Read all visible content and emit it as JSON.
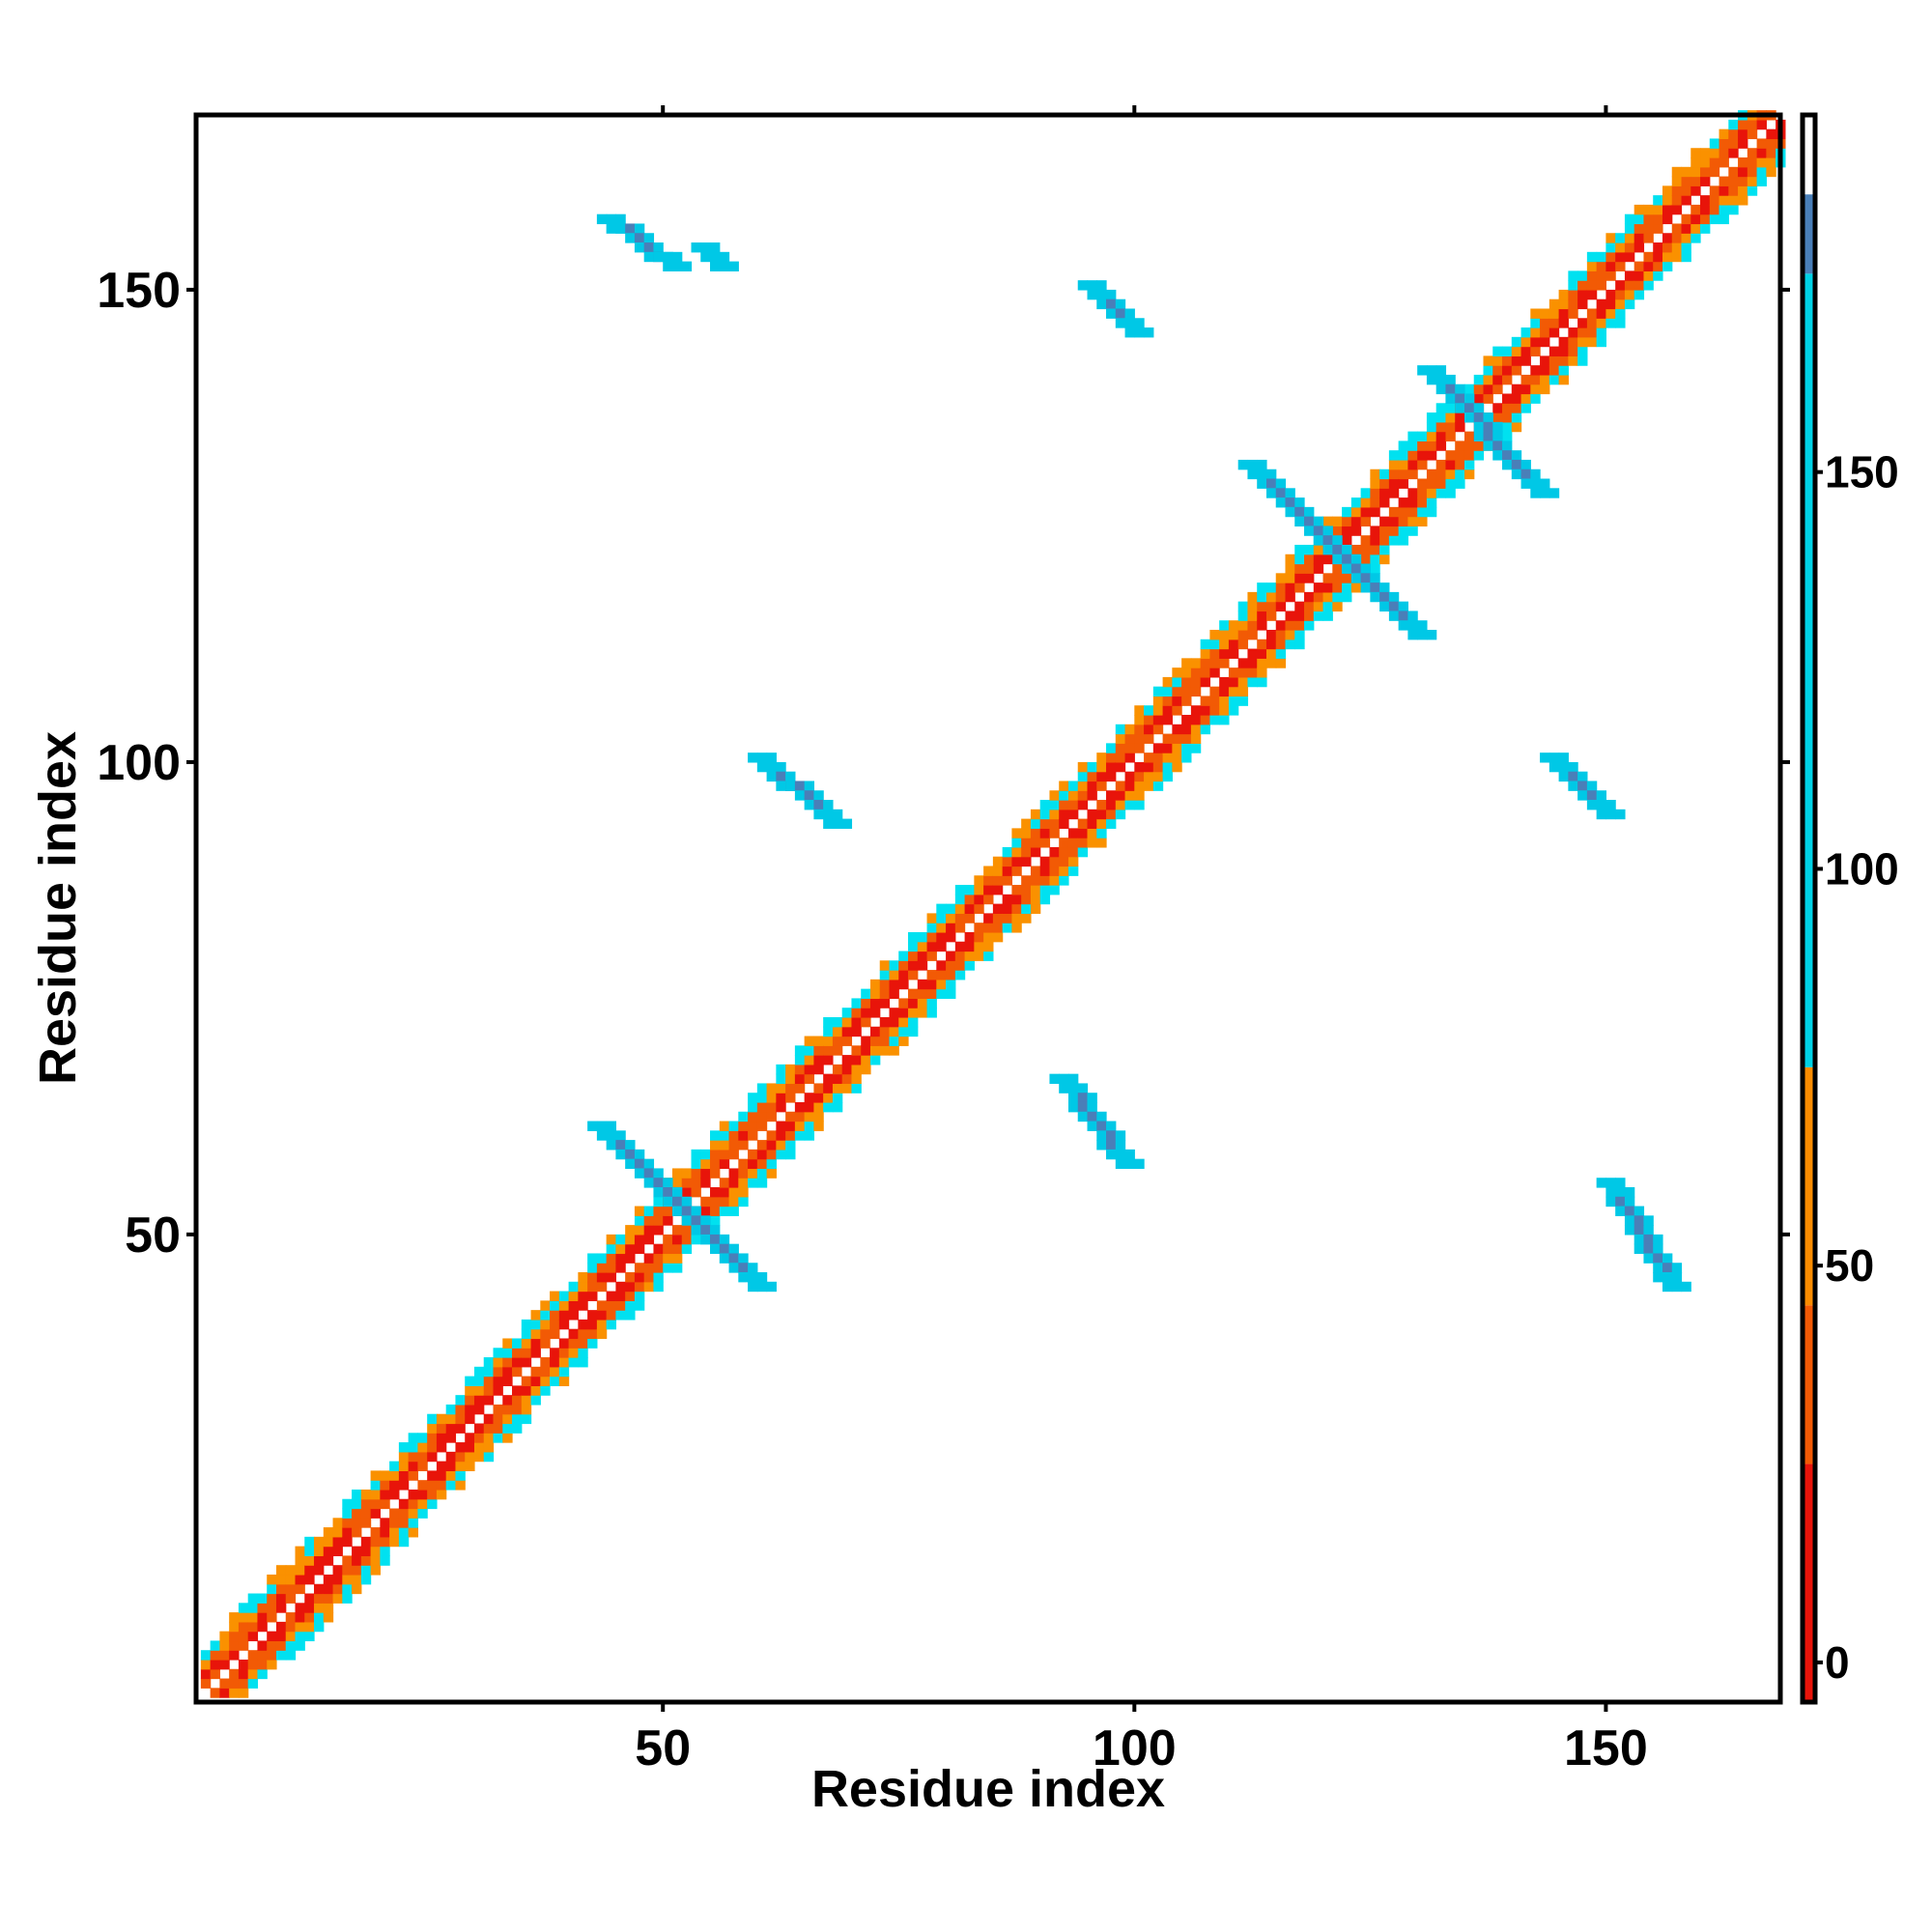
{
  "chart_data": {
    "type": "heatmap",
    "title": "",
    "xlabel": "Residue index",
    "ylabel": "Residue index",
    "xlim": [
      1,
      168
    ],
    "ylim": [
      1,
      168
    ],
    "x_ticks": [
      50,
      100,
      150
    ],
    "y_ticks": [
      50,
      100,
      150
    ],
    "grid": false,
    "legend": "colorbar right",
    "colorbar": {
      "ticks": [
        0,
        50,
        100,
        150
      ],
      "range": [
        -5,
        195
      ],
      "bands": [
        {
          "from": -5,
          "to": 20,
          "color": "#e8140a"
        },
        {
          "from": 20,
          "to": 45,
          "color": "#f25a05"
        },
        {
          "from": 45,
          "to": 95,
          "color": "#fa9100"
        },
        {
          "from": 95,
          "to": 195,
          "color": "#00e1f0"
        }
      ],
      "steps": [
        {
          "from": -5,
          "to": 25,
          "color": "#e8140a"
        },
        {
          "from": 25,
          "to": 45,
          "color": "#f25a05"
        },
        {
          "from": 45,
          "to": 75,
          "color": "#fa8c00"
        },
        {
          "from": 75,
          "to": 175,
          "color": "#00d2e6"
        },
        {
          "from": 175,
          "to": 185,
          "color": "#4a7fb8"
        },
        {
          "from": 185,
          "to": 195,
          "color": "#ffffff"
        }
      ]
    },
    "diagonal": {
      "start": 1,
      "end": 168,
      "width": 5
    },
    "contact_blobs": [
      {
        "x": [
          44,
          51
        ],
        "y": [
          152,
          157
        ]
      },
      {
        "x": [
          54,
          56
        ],
        "y": [
          152,
          154
        ]
      },
      {
        "x": [
          95,
          100
        ],
        "y": [
          145,
          150
        ]
      },
      {
        "x": [
          131,
          143
        ],
        "y": [
          128,
          141
        ]
      },
      {
        "x": [
          112,
          130
        ],
        "y": [
          113,
          131
        ]
      },
      {
        "x": [
          60,
          68
        ],
        "y": [
          93,
          100
        ]
      },
      {
        "x": [
          144,
          150
        ],
        "y": [
          94,
          100
        ]
      },
      {
        "x": [
          92,
          99
        ],
        "y": [
          57,
          66
        ]
      },
      {
        "x": [
          43,
          60
        ],
        "y": [
          44,
          61
        ]
      },
      {
        "x": [
          150,
          157
        ],
        "y": [
          44,
          55
        ]
      }
    ]
  }
}
